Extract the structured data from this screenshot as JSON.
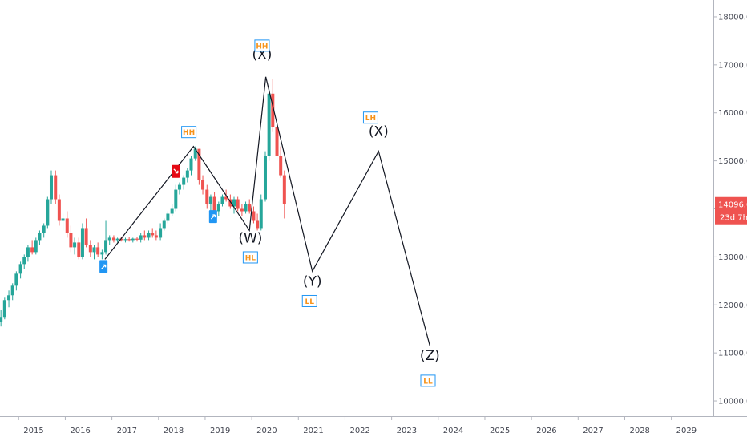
{
  "chart_data": {
    "type": "candlestick",
    "colors": {
      "up": "#26a69a",
      "down": "#ef5350",
      "wave": "#131722",
      "tag_border": "#2196f3",
      "tag_text": "#f7931a",
      "price_badge": "#ef5350"
    },
    "xlim": [
      2014.6,
      2029.9
    ],
    "ylim": [
      9700,
      18350
    ],
    "y_ticks": [
      "10000.0",
      "11000.0",
      "12000.0",
      "13000.0",
      "14000.0",
      "15000.0",
      "16000.0",
      "17000.0",
      "18000.0"
    ],
    "y_tick_values": [
      10000,
      11000,
      12000,
      13000,
      14000,
      15000,
      16000,
      17000,
      18000
    ],
    "x_ticks": [
      "2015",
      "2016",
      "2017",
      "2018",
      "2019",
      "2020",
      "2021",
      "2022",
      "2023",
      "2024",
      "2025",
      "2026",
      "2027",
      "2028",
      "2029"
    ],
    "x_tick_values": [
      2015,
      2016,
      2017,
      2018,
      2019,
      2020,
      2021,
      2022,
      2023,
      2024,
      2025,
      2026,
      2027,
      2028,
      2029
    ],
    "last_price": "14096.0",
    "countdown": "23d 7h",
    "candles": [
      [
        2014.62,
        11650,
        11900,
        11550,
        11750
      ],
      [
        2014.7,
        11750,
        12150,
        11700,
        12100
      ],
      [
        2014.79,
        12100,
        12300,
        11950,
        12200
      ],
      [
        2014.87,
        12200,
        12450,
        12100,
        12400
      ],
      [
        2014.95,
        12400,
        12700,
        12300,
        12650
      ],
      [
        2015.04,
        12650,
        12900,
        12550,
        12850
      ],
      [
        2015.12,
        12850,
        13050,
        12750,
        13000
      ],
      [
        2015.2,
        13000,
        13250,
        12900,
        13200
      ],
      [
        2015.29,
        13200,
        13350,
        13050,
        13100
      ],
      [
        2015.37,
        13100,
        13400,
        13050,
        13350
      ],
      [
        2015.45,
        13350,
        13550,
        13250,
        13500
      ],
      [
        2015.54,
        13500,
        13700,
        13400,
        13650
      ],
      [
        2015.62,
        13650,
        14250,
        13600,
        14200
      ],
      [
        2015.7,
        14200,
        14800,
        14100,
        14700
      ],
      [
        2015.79,
        14700,
        14800,
        14100,
        14200
      ],
      [
        2015.87,
        14200,
        14300,
        13650,
        13750
      ],
      [
        2015.95,
        13750,
        13900,
        13550,
        13800
      ],
      [
        2016.04,
        13800,
        13950,
        13400,
        13500
      ],
      [
        2016.12,
        13500,
        13650,
        13100,
        13200
      ],
      [
        2016.2,
        13200,
        13400,
        13050,
        13300
      ],
      [
        2016.29,
        13300,
        13400,
        12950,
        13000
      ],
      [
        2016.37,
        13000,
        13700,
        12950,
        13600
      ],
      [
        2016.45,
        13600,
        13800,
        13200,
        13250
      ],
      [
        2016.54,
        13250,
        13350,
        13000,
        13100
      ],
      [
        2016.62,
        13100,
        13250,
        12950,
        13200
      ],
      [
        2016.7,
        13200,
        13300,
        13000,
        13050
      ],
      [
        2016.79,
        13050,
        13150,
        12950,
        13100
      ],
      [
        2016.87,
        13100,
        13750,
        13050,
        13350
      ],
      [
        2016.95,
        13350,
        13450,
        13250,
        13400
      ],
      [
        2017.04,
        13400,
        13450,
        13300,
        13350
      ],
      [
        2017.12,
        13350,
        13400,
        13300,
        13380
      ],
      [
        2017.2,
        13380,
        13420,
        13320,
        13350
      ],
      [
        2017.29,
        13350,
        13400,
        13300,
        13370
      ],
      [
        2017.37,
        13370,
        13420,
        13320,
        13350
      ],
      [
        2017.45,
        13350,
        13400,
        13300,
        13380
      ],
      [
        2017.54,
        13380,
        13420,
        13320,
        13360
      ],
      [
        2017.62,
        13360,
        13500,
        13300,
        13450
      ],
      [
        2017.7,
        13450,
        13550,
        13350,
        13400
      ],
      [
        2017.79,
        13400,
        13550,
        13350,
        13500
      ],
      [
        2017.87,
        13500,
        13600,
        13400,
        13450
      ],
      [
        2017.95,
        13450,
        13550,
        13350,
        13400
      ],
      [
        2018.04,
        13400,
        13700,
        13350,
        13600
      ],
      [
        2018.12,
        13600,
        13800,
        13550,
        13750
      ],
      [
        2018.2,
        13750,
        13950,
        13700,
        13900
      ],
      [
        2018.29,
        13900,
        14100,
        13850,
        14000
      ],
      [
        2018.37,
        14000,
        14500,
        13950,
        14400
      ],
      [
        2018.45,
        14400,
        14550,
        14300,
        14500
      ],
      [
        2018.54,
        14500,
        14700,
        14400,
        14650
      ],
      [
        2018.62,
        14650,
        14850,
        14550,
        14800
      ],
      [
        2018.7,
        14800,
        15100,
        14700,
        15050
      ],
      [
        2018.79,
        15050,
        15300,
        15000,
        15250
      ],
      [
        2018.87,
        15250,
        15250,
        14500,
        14600
      ],
      [
        2018.95,
        14600,
        14700,
        14300,
        14400
      ],
      [
        2019.04,
        14400,
        14500,
        14000,
        14100
      ],
      [
        2019.12,
        14100,
        14300,
        13950,
        14250
      ],
      [
        2019.2,
        14250,
        14350,
        13900,
        13950
      ],
      [
        2019.29,
        13950,
        14150,
        13850,
        14100
      ],
      [
        2019.37,
        14100,
        14300,
        14050,
        14250
      ],
      [
        2019.45,
        14250,
        14400,
        14150,
        14200
      ],
      [
        2019.54,
        14200,
        14300,
        14000,
        14050
      ],
      [
        2019.62,
        14050,
        14250,
        13900,
        14200
      ],
      [
        2019.7,
        14200,
        14250,
        13950,
        14000
      ],
      [
        2019.79,
        14000,
        14100,
        13850,
        13950
      ],
      [
        2019.87,
        13950,
        14150,
        13900,
        14100
      ],
      [
        2019.95,
        14100,
        14200,
        13900,
        13950
      ],
      [
        2020.04,
        13950,
        14050,
        13700,
        13750
      ],
      [
        2020.12,
        13750,
        13900,
        13550,
        13600
      ],
      [
        2020.2,
        13600,
        14300,
        13550,
        14200
      ],
      [
        2020.29,
        14200,
        15200,
        14150,
        15100
      ],
      [
        2020.37,
        15100,
        16500,
        15000,
        16400
      ],
      [
        2020.45,
        16400,
        16700,
        15600,
        15700
      ],
      [
        2020.54,
        15700,
        15800,
        15000,
        15100
      ],
      [
        2020.62,
        15100,
        15300,
        14650,
        14700
      ],
      [
        2020.7,
        14700,
        14800,
        13800,
        14096
      ]
    ]
  },
  "wave_path": [
    [
      2016.85,
      12950
    ],
    [
      2018.75,
      15300
    ],
    [
      2019.95,
      13550
    ],
    [
      2020.3,
      16750
    ],
    [
      2021.3,
      12700
    ],
    [
      2022.72,
      15200
    ],
    [
      2023.82,
      11150
    ]
  ],
  "wave_labels": [
    {
      "text": "(W)",
      "x": 2019.97,
      "y": 13300
    },
    {
      "text": "(X)",
      "x": 2020.22,
      "y": 17120
    },
    {
      "text": "(Y)",
      "x": 2021.3,
      "y": 12400
    },
    {
      "text": "(X)",
      "x": 2022.72,
      "y": 15520
    },
    {
      "text": "(Z)",
      "x": 2023.82,
      "y": 10850
    }
  ],
  "tags": [
    {
      "text": "HH",
      "x": 2018.65,
      "y": 15600
    },
    {
      "text": "HH",
      "x": 2020.22,
      "y": 17400
    },
    {
      "text": "HL",
      "x": 2019.97,
      "y": 12990
    },
    {
      "text": "LL",
      "x": 2021.24,
      "y": 12080
    },
    {
      "text": "LH",
      "x": 2022.55,
      "y": 15900
    },
    {
      "text": "LL",
      "x": 2023.78,
      "y": 10420
    }
  ],
  "signals": [
    {
      "dir": "up",
      "color": "#2196f3",
      "x": 2016.82,
      "y": 12800
    },
    {
      "dir": "down",
      "color": "#e50914",
      "x": 2018.37,
      "y": 14780
    },
    {
      "dir": "up",
      "color": "#2196f3",
      "x": 2019.17,
      "y": 13840
    }
  ]
}
